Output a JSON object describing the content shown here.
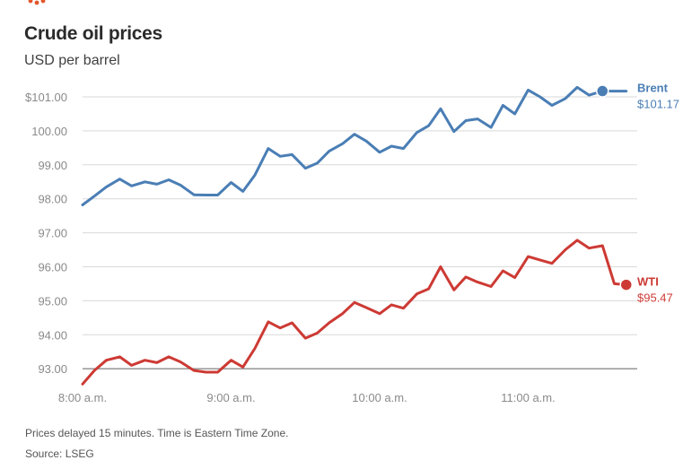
{
  "header": {
    "title": "Crude oil prices",
    "subtitle": "USD per barrel"
  },
  "footer": {
    "note": "Prices delayed 15 minutes. Time is Eastern Time Zone.",
    "source": "Source: LSEG"
  },
  "colors": {
    "brent": "#4a7eb5",
    "wti": "#cd3a34",
    "grid": "#d9d9d9",
    "baseline": "#8c8c8c",
    "logo": "#e2572b"
  },
  "icons": {
    "logo": "reuters-logo-icon"
  },
  "chart_data": {
    "type": "line",
    "title": "Crude oil prices",
    "subtitle": "USD per barrel",
    "xlabel": "",
    "ylabel": "USD per barrel",
    "ylim": [
      92.5,
      101.5
    ],
    "xlim": [
      0,
      3.72
    ],
    "x_unit": "hours after 8:00 a.m.",
    "yticks": [
      93,
      94,
      95,
      96,
      97,
      98,
      99,
      100,
      101
    ],
    "ytick_labels": [
      "93.00",
      "94.00",
      "95.00",
      "96.00",
      "97.00",
      "98.00",
      "99.00",
      "100.00",
      "$101.00"
    ],
    "xticks": [
      0,
      1,
      2,
      3
    ],
    "xtick_labels": [
      "8:00 a.m.",
      "9:00 a.m.",
      "10:00 a.m.",
      "11:00 a.m."
    ],
    "grid": true,
    "series": [
      {
        "name": "Brent",
        "end_label": "$101.17",
        "x": [
          0,
          0.08,
          0.16,
          0.25,
          0.33,
          0.42,
          0.5,
          0.58,
          0.66,
          0.75,
          0.83,
          0.91,
          1.0,
          1.08,
          1.16,
          1.25,
          1.33,
          1.41,
          1.5,
          1.58,
          1.66,
          1.75,
          1.83,
          1.91,
          2.0,
          2.08,
          2.16,
          2.25,
          2.33,
          2.41,
          2.5,
          2.58,
          2.66,
          2.75,
          2.83,
          2.91,
          3.0,
          3.08,
          3.16,
          3.25,
          3.33,
          3.41,
          3.5,
          3.58,
          3.66
        ],
        "values": [
          97.82,
          98.08,
          98.35,
          98.58,
          98.38,
          98.5,
          98.43,
          98.56,
          98.4,
          98.12,
          98.11,
          98.11,
          98.48,
          98.22,
          98.7,
          99.48,
          99.25,
          99.3,
          98.9,
          99.05,
          99.4,
          99.62,
          99.9,
          99.7,
          99.37,
          99.55,
          99.48,
          99.95,
          100.15,
          100.65,
          99.98,
          100.3,
          100.35,
          100.1,
          100.75,
          100.5,
          101.2,
          101.0,
          100.75,
          100.95,
          101.28,
          101.05,
          101.17,
          101.17,
          101.17
        ],
        "end_x": 3.5,
        "end_value": 101.17
      },
      {
        "name": "WTI",
        "end_label": "$95.47",
        "x": [
          0,
          0.08,
          0.16,
          0.25,
          0.33,
          0.42,
          0.5,
          0.58,
          0.66,
          0.75,
          0.83,
          0.91,
          1.0,
          1.08,
          1.16,
          1.25,
          1.33,
          1.41,
          1.5,
          1.58,
          1.66,
          1.75,
          1.83,
          1.91,
          2.0,
          2.08,
          2.16,
          2.25,
          2.33,
          2.41,
          2.5,
          2.58,
          2.66,
          2.75,
          2.83,
          2.91,
          3.0,
          3.08,
          3.16,
          3.25,
          3.33,
          3.41,
          3.5,
          3.58,
          3.66
        ],
        "values": [
          92.55,
          92.95,
          93.25,
          93.35,
          93.1,
          93.25,
          93.18,
          93.35,
          93.2,
          92.95,
          92.9,
          92.9,
          93.25,
          93.05,
          93.6,
          94.38,
          94.2,
          94.35,
          93.9,
          94.05,
          94.35,
          94.62,
          94.95,
          94.8,
          94.62,
          94.88,
          94.78,
          95.2,
          95.35,
          96.0,
          95.32,
          95.7,
          95.55,
          95.42,
          95.88,
          95.68,
          96.3,
          96.2,
          96.1,
          96.5,
          96.78,
          96.55,
          96.62,
          95.5,
          95.47
        ],
        "end_x": 3.66,
        "end_value": 95.47
      }
    ]
  }
}
